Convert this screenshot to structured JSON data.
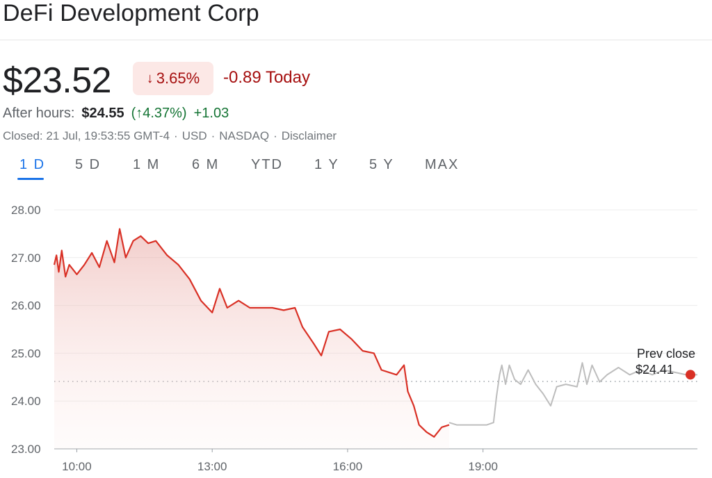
{
  "header": {
    "title": "DeFi Development Corp"
  },
  "quote": {
    "price": "$23.52",
    "change_pct": "3.65%",
    "change_direction": "down",
    "change_today": "-0.89 Today",
    "after_hours_label": "After hours:",
    "after_hours_price": "$24.55",
    "after_hours_pct": "(↑4.37%)",
    "after_hours_change": "+1.03",
    "meta": [
      "Closed: 21 Jul, 19:53:55 GMT-4",
      "USD",
      "NASDAQ",
      "Disclaimer"
    ],
    "meta_separator": "·"
  },
  "range_tabs": [
    {
      "label": "1 D",
      "active": true
    },
    {
      "label": "5 D",
      "active": false
    },
    {
      "label": "1 M",
      "active": false
    },
    {
      "label": "6 M",
      "active": false
    },
    {
      "label": "YTD",
      "active": false
    },
    {
      "label": "1 Y",
      "active": false
    },
    {
      "label": "5 Y",
      "active": false
    },
    {
      "label": "MAX",
      "active": false
    }
  ],
  "colors": {
    "down": "#a50e0e",
    "up": "#137333",
    "accent": "#1a73e8",
    "line_regular": "#d93025",
    "line_after_hours": "#bdbdbd"
  },
  "chart_data": {
    "type": "line",
    "ylim": [
      23.0,
      28.0
    ],
    "yticks": [
      "28.00",
      "27.00",
      "26.00",
      "25.00",
      "24.00",
      "23.00"
    ],
    "xticks": [
      "10:00",
      "13:00",
      "16:00",
      "19:00"
    ],
    "prev_close_label": "Prev close",
    "prev_close_value": "$24.41",
    "prev_close": 24.41,
    "grid": true,
    "series": [
      {
        "segment": "regular",
        "points": [
          [
            "09:30",
            26.85
          ],
          [
            "09:33",
            27.05
          ],
          [
            "09:36",
            26.7
          ],
          [
            "09:40",
            27.15
          ],
          [
            "09:45",
            26.6
          ],
          [
            "09:50",
            26.85
          ],
          [
            "10:00",
            26.65
          ],
          [
            "10:10",
            26.85
          ],
          [
            "10:20",
            27.1
          ],
          [
            "10:30",
            26.8
          ],
          [
            "10:40",
            27.35
          ],
          [
            "10:50",
            26.9
          ],
          [
            "10:57",
            27.6
          ],
          [
            "11:05",
            27.0
          ],
          [
            "11:15",
            27.35
          ],
          [
            "11:25",
            27.45
          ],
          [
            "11:35",
            27.3
          ],
          [
            "11:45",
            27.35
          ],
          [
            "12:00",
            27.05
          ],
          [
            "12:15",
            26.85
          ],
          [
            "12:30",
            26.55
          ],
          [
            "12:45",
            26.1
          ],
          [
            "13:00",
            25.85
          ],
          [
            "13:10",
            26.35
          ],
          [
            "13:20",
            25.95
          ],
          [
            "13:35",
            26.1
          ],
          [
            "13:50",
            25.95
          ],
          [
            "14:05",
            25.95
          ],
          [
            "14:20",
            25.95
          ],
          [
            "14:35",
            25.9
          ],
          [
            "14:50",
            25.95
          ],
          [
            "15:00",
            25.55
          ],
          [
            "15:15",
            25.2
          ],
          [
            "15:25",
            24.95
          ],
          [
            "15:35",
            25.45
          ],
          [
            "15:50",
            25.5
          ],
          [
            "16:05",
            25.3
          ],
          [
            "16:20",
            25.05
          ],
          [
            "16:35",
            25.0
          ],
          [
            "16:45",
            24.65
          ],
          [
            "16:55",
            24.6
          ],
          [
            "17:05",
            24.55
          ],
          [
            "17:15",
            24.75
          ],
          [
            "17:20",
            24.2
          ],
          [
            "17:28",
            23.9
          ],
          [
            "17:35",
            23.5
          ],
          [
            "17:45",
            23.35
          ],
          [
            "17:55",
            23.25
          ],
          [
            "18:05",
            23.45
          ],
          [
            "18:15",
            23.5
          ]
        ]
      },
      {
        "segment": "after_hours",
        "points": [
          [
            "18:15",
            23.55
          ],
          [
            "18:25",
            23.5
          ],
          [
            "18:45",
            23.5
          ],
          [
            "19:05",
            23.5
          ],
          [
            "19:14",
            23.55
          ],
          [
            "19:18",
            24.1
          ],
          [
            "19:22",
            24.55
          ],
          [
            "19:25",
            24.75
          ],
          [
            "19:30",
            24.35
          ],
          [
            "19:35",
            24.75
          ],
          [
            "19:42",
            24.45
          ],
          [
            "19:50",
            24.35
          ],
          [
            "20:00",
            24.65
          ],
          [
            "20:10",
            24.35
          ],
          [
            "20:20",
            24.15
          ],
          [
            "20:30",
            23.9
          ],
          [
            "20:38",
            24.3
          ],
          [
            "20:50",
            24.35
          ],
          [
            "21:05",
            24.3
          ],
          [
            "21:12",
            24.8
          ],
          [
            "21:18",
            24.35
          ],
          [
            "21:25",
            24.75
          ],
          [
            "21:35",
            24.4
          ],
          [
            "21:45",
            24.55
          ],
          [
            "22:00",
            24.7
          ],
          [
            "22:15",
            24.55
          ],
          [
            "22:30",
            24.65
          ],
          [
            "22:45",
            24.55
          ],
          [
            "23:00",
            24.65
          ],
          [
            "23:15",
            24.6
          ],
          [
            "23:30",
            24.55
          ],
          [
            "23:45",
            24.55
          ]
        ]
      }
    ],
    "last_point": [
      "23:45",
      24.55
    ]
  }
}
